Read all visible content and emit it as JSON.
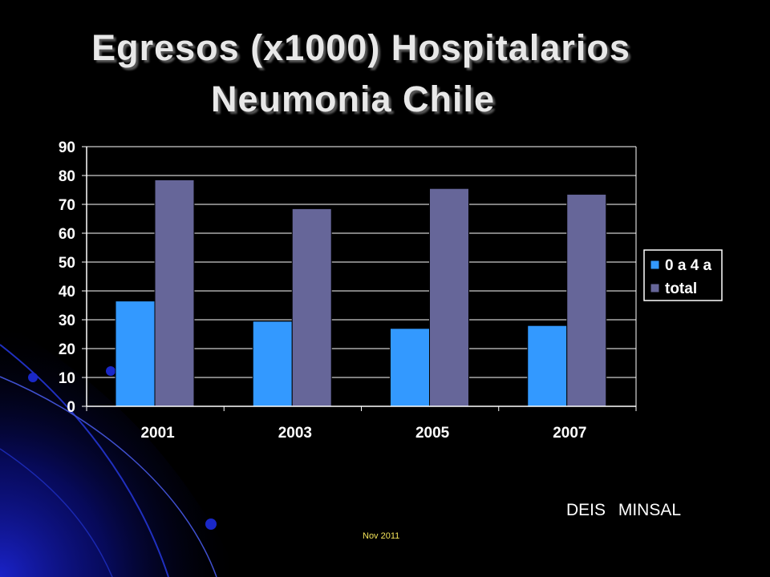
{
  "slide": {
    "title_line1": "Egresos  (x1000) Hospitalarios",
    "title_line2": "Neumonia  Chile",
    "source": "DEIS   MINSAL",
    "footer": "Nov 2011"
  },
  "colors": {
    "background": "#000000",
    "series_0a4": "#3399ff",
    "series_total": "#666699",
    "grid": "#ffffff",
    "text": "#ffffff",
    "decoration": "#0a10a0"
  },
  "chart_data": {
    "type": "bar",
    "categories": [
      "2001",
      "2003",
      "2005",
      "2007"
    ],
    "series": [
      {
        "name": "0 a 4 a",
        "values": [
          36.5,
          29.5,
          27,
          28
        ]
      },
      {
        "name": "total",
        "values": [
          78.5,
          68.5,
          75.5,
          73.5
        ]
      }
    ],
    "title": "Egresos  (x1000) Hospitalarios Neumonia  Chile",
    "xlabel": "",
    "ylabel": "",
    "ylim": [
      0,
      90
    ],
    "yticks": [
      0,
      10,
      20,
      30,
      40,
      50,
      60,
      70,
      80,
      90
    ],
    "grid": true,
    "legend": "right"
  }
}
